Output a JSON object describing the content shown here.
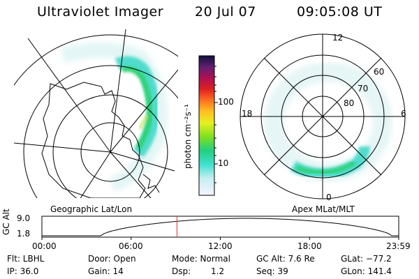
{
  "header": {
    "title": "Ultraviolet Imager",
    "date": "20 Jul 07",
    "time": "09:05:08 UT"
  },
  "left_panel": {
    "label": "Geographic Lat/Lon"
  },
  "colorbar": {
    "unit_label": "photon cm⁻²s⁻¹",
    "ticks": [
      "100",
      "10"
    ],
    "scale": "log"
  },
  "right_panel": {
    "label": "Apex MLat/MLT",
    "mlt_labels": {
      "top": "12",
      "left": "18",
      "right": "6",
      "bottom": "0"
    },
    "lat_labels": [
      "60",
      "70",
      "80"
    ]
  },
  "timeline": {
    "ylabel": "GC Alt",
    "yticks": [
      "9.0",
      "1.8"
    ],
    "xticks": [
      "00:00",
      "06:00",
      "12:00",
      "18:00",
      "23:59"
    ],
    "current_time_hours": 9.085,
    "marker_color": "#e03030"
  },
  "status": {
    "flt": "Flt: LBHL",
    "ip": "IP: 36.0",
    "door": "Door: Open",
    "gain": "Gain: 14",
    "mode": "Mode: Normal",
    "dsp_label": "Dsp:",
    "dsp_value": "1.2",
    "gc_alt": "GC Alt: 7.6 Re",
    "seq": "Seq: 39",
    "glat": "GLat: −77.2",
    "glon": "GLon: 141.4"
  },
  "colors": {
    "aurora_bright": "#2ad16f",
    "aurora_mid": "#40d9c8",
    "aurora_faint": "#bfe9e6"
  }
}
